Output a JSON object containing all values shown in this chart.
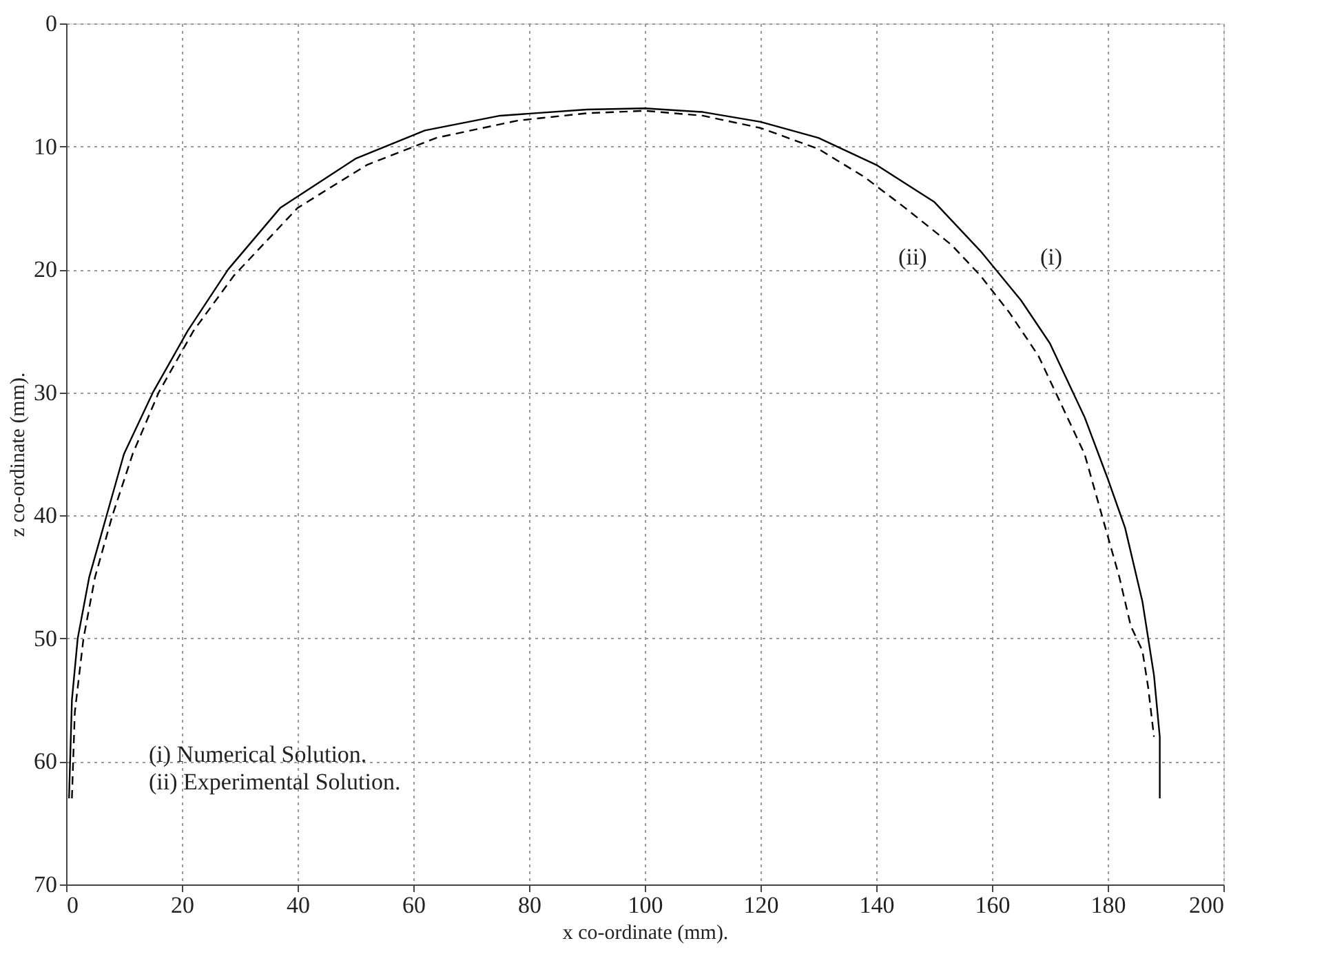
{
  "chart_data": {
    "type": "line",
    "xlabel": "x co-ordinate (mm).",
    "ylabel": "z co-ordinate (mm).",
    "xlim": [
      0,
      200
    ],
    "ylim": [
      70,
      0
    ],
    "xticks": [
      0,
      20,
      40,
      60,
      80,
      100,
      120,
      140,
      160,
      180,
      200
    ],
    "yticks": [
      0,
      10,
      20,
      30,
      40,
      50,
      60,
      70
    ],
    "grid": true,
    "marker": "none",
    "series": [
      {
        "color": "#000000",
        "line_style": "solid",
        "x": [
          0.5,
          1,
          2,
          4,
          7,
          10,
          15,
          21,
          28,
          37,
          50,
          62,
          75,
          90,
          100,
          110,
          120,
          130,
          140,
          150,
          158,
          165,
          170,
          176,
          180,
          183,
          186,
          188,
          189,
          189
        ],
        "values": [
          63,
          55,
          50,
          45,
          40,
          35,
          30,
          25,
          20,
          15,
          11,
          8.7,
          7.5,
          7,
          6.9,
          7.2,
          8,
          9.3,
          11.5,
          14.5,
          18.5,
          22.5,
          26,
          32,
          37,
          41,
          47,
          53,
          58,
          63
        ]
      },
      {
        "color": "#000000",
        "line_style": "dashed",
        "x": [
          1,
          1.5,
          3,
          5,
          8,
          11.5,
          16,
          22,
          29,
          40,
          52,
          64,
          78,
          90,
          100,
          110,
          120,
          130,
          138,
          145,
          153,
          158,
          163,
          168,
          172,
          176,
          179,
          182,
          184,
          186,
          187,
          188
        ],
        "values": [
          63,
          56,
          50,
          45,
          40,
          35,
          30,
          25,
          20.5,
          15,
          11.5,
          9.3,
          7.9,
          7.3,
          7.1,
          7.5,
          8.5,
          10.2,
          12.5,
          15,
          18,
          20.5,
          23.5,
          27,
          31,
          35,
          40,
          45,
          49,
          51,
          54,
          58
        ]
      }
    ],
    "annotations": [
      "(ii)",
      "(i)",
      "(i)  Numerical Solution.",
      "(ii) Experimental Solution."
    ]
  }
}
